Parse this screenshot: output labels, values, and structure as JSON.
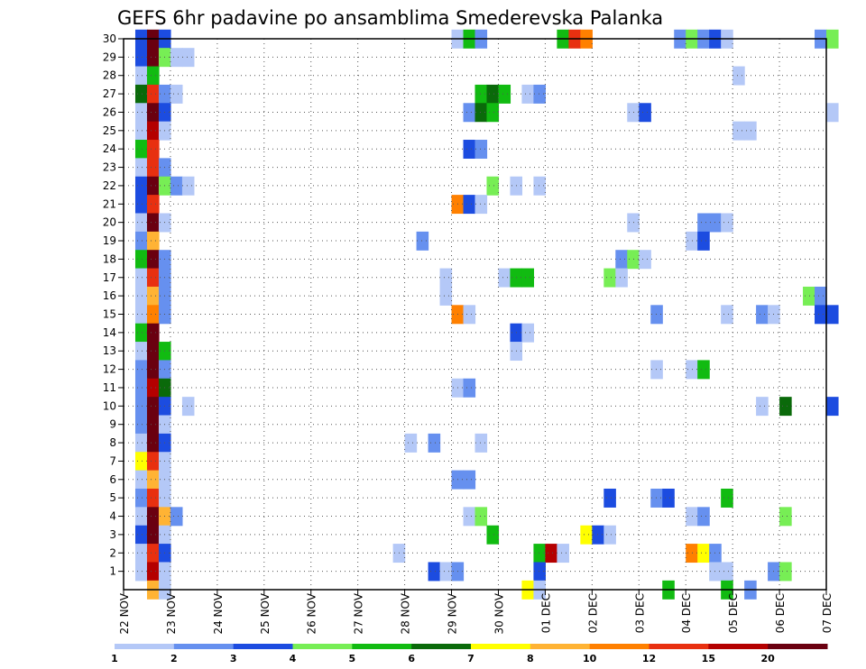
{
  "chart_data": {
    "type": "heatmap",
    "title": "GEFS 6hr padavine po ansamblima Smederevska Palanka",
    "xlabel": "",
    "ylabel": "",
    "x_ticks": [
      "22 NOV",
      "23 NOV",
      "24 NOV",
      "25 NOV",
      "26 NOV",
      "27 NOV",
      "28 NOV",
      "29 NOV",
      "30 NOV",
      "01 DEC",
      "02 DEC",
      "03 DEC",
      "04 DEC",
      "05 DEC",
      "06 DEC",
      "07 DEC"
    ],
    "y_ticks": [
      "1",
      "2",
      "3",
      "4",
      "5",
      "6",
      "7",
      "8",
      "9",
      "10",
      "11",
      "12",
      "13",
      "14",
      "15",
      "16",
      "17",
      "18",
      "19",
      "20",
      "21",
      "22",
      "23",
      "24",
      "25",
      "26",
      "27",
      "28",
      "29",
      "30"
    ],
    "x_range_days": [
      0,
      15
    ],
    "y_range": [
      0,
      30
    ],
    "grid": true,
    "colorbar": {
      "labels": [
        "1",
        "2",
        "3",
        "4",
        "5",
        "6",
        "7",
        "8",
        "10",
        "12",
        "15",
        "20"
      ],
      "colors": [
        "#b4c8f7",
        "#6690ef",
        "#1c4ce0",
        "#77ee55",
        "#11bb11",
        "#0a6a0a",
        "#ffff00",
        "#ffb334",
        "#ff8000",
        "#e83010",
        "#b40000",
        "#6a0010"
      ]
    },
    "cells": [
      [
        0.25,
        30,
        2
      ],
      [
        0.5,
        30,
        11
      ],
      [
        0.75,
        30,
        2
      ],
      [
        0.25,
        29,
        2
      ],
      [
        0.5,
        29,
        11
      ],
      [
        0.75,
        29,
        3
      ],
      [
        1.0,
        29,
        0
      ],
      [
        1.25,
        29,
        0
      ],
      [
        0.25,
        28,
        0
      ],
      [
        0.5,
        28,
        4
      ],
      [
        0.25,
        27,
        5
      ],
      [
        0.5,
        27,
        9
      ],
      [
        0.75,
        27,
        1
      ],
      [
        1.0,
        27,
        0
      ],
      [
        0.25,
        26,
        0
      ],
      [
        0.5,
        26,
        11
      ],
      [
        0.75,
        26,
        2
      ],
      [
        0.25,
        25,
        0
      ],
      [
        0.5,
        25,
        10
      ],
      [
        0.75,
        25,
        0
      ],
      [
        0.25,
        24,
        4
      ],
      [
        0.5,
        24,
        9
      ],
      [
        0.25,
        23,
        0
      ],
      [
        0.5,
        23,
        9
      ],
      [
        0.75,
        23,
        1
      ],
      [
        0.25,
        22,
        2
      ],
      [
        0.5,
        22,
        11
      ],
      [
        0.75,
        22,
        3
      ],
      [
        1.0,
        22,
        1
      ],
      [
        1.25,
        22,
        0
      ],
      [
        0.25,
        21,
        2
      ],
      [
        0.5,
        21,
        9
      ],
      [
        0.25,
        20,
        0
      ],
      [
        0.5,
        20,
        11
      ],
      [
        0.75,
        20,
        0
      ],
      [
        0.25,
        19,
        1
      ],
      [
        0.5,
        19,
        7
      ],
      [
        0.25,
        18,
        4
      ],
      [
        0.5,
        18,
        11
      ],
      [
        0.75,
        18,
        1
      ],
      [
        0.25,
        17,
        0
      ],
      [
        0.5,
        17,
        9
      ],
      [
        0.75,
        17,
        1
      ],
      [
        0.25,
        16,
        0
      ],
      [
        0.5,
        16,
        7
      ],
      [
        0.75,
        16,
        1
      ],
      [
        0.25,
        15,
        0
      ],
      [
        0.5,
        15,
        8
      ],
      [
        0.75,
        15,
        1
      ],
      [
        0.25,
        14,
        4
      ],
      [
        0.5,
        14,
        11
      ],
      [
        0.25,
        13,
        0
      ],
      [
        0.5,
        13,
        11
      ],
      [
        0.75,
        13,
        4
      ],
      [
        0.25,
        12,
        1
      ],
      [
        0.5,
        12,
        11
      ],
      [
        0.75,
        12,
        1
      ],
      [
        0.25,
        11,
        1
      ],
      [
        0.5,
        11,
        10
      ],
      [
        0.75,
        11,
        5
      ],
      [
        0.25,
        10,
        1
      ],
      [
        0.5,
        10,
        11
      ],
      [
        0.75,
        10,
        2
      ],
      [
        1.25,
        10,
        0
      ],
      [
        0.25,
        9,
        1
      ],
      [
        0.5,
        9,
        11
      ],
      [
        0.75,
        9,
        0
      ],
      [
        0.25,
        8,
        0
      ],
      [
        0.5,
        8,
        11
      ],
      [
        0.75,
        8,
        2
      ],
      [
        0.25,
        7,
        6
      ],
      [
        0.5,
        7,
        9
      ],
      [
        0.75,
        7,
        0
      ],
      [
        0.25,
        6,
        0
      ],
      [
        0.5,
        6,
        7
      ],
      [
        0.75,
        6,
        0
      ],
      [
        0.25,
        5,
        1
      ],
      [
        0.5,
        5,
        9
      ],
      [
        0.75,
        5,
        0
      ],
      [
        0.25,
        4,
        0
      ],
      [
        0.5,
        4,
        11
      ],
      [
        0.75,
        4,
        7
      ],
      [
        1.0,
        4,
        1
      ],
      [
        0.25,
        3,
        2
      ],
      [
        0.5,
        3,
        11
      ],
      [
        0.75,
        3,
        0
      ],
      [
        0.25,
        2,
        0
      ],
      [
        0.5,
        2,
        9
      ],
      [
        0.75,
        2,
        2
      ],
      [
        0.25,
        1,
        0
      ],
      [
        0.5,
        1,
        10
      ],
      [
        0.75,
        1,
        0
      ],
      [
        0.5,
        0,
        7
      ],
      [
        0.75,
        0,
        0
      ],
      [
        7.0,
        30,
        0
      ],
      [
        7.25,
        30,
        4
      ],
      [
        7.5,
        30,
        1
      ],
      [
        9.25,
        30,
        4
      ],
      [
        9.5,
        30,
        9
      ],
      [
        9.75,
        30,
        8
      ],
      [
        11.75,
        30,
        1
      ],
      [
        12.0,
        30,
        3
      ],
      [
        12.25,
        30,
        1
      ],
      [
        12.5,
        30,
        2
      ],
      [
        12.75,
        30,
        0
      ],
      [
        14.75,
        30,
        1
      ],
      [
        15.0,
        30,
        3
      ],
      [
        13.0,
        28,
        0
      ],
      [
        7.5,
        27,
        4
      ],
      [
        7.75,
        27,
        5
      ],
      [
        8.0,
        27,
        4
      ],
      [
        8.5,
        27,
        0
      ],
      [
        8.75,
        27,
        1
      ],
      [
        7.25,
        26,
        1
      ],
      [
        7.5,
        26,
        5
      ],
      [
        7.75,
        26,
        4
      ],
      [
        10.75,
        26,
        0
      ],
      [
        11.0,
        26,
        2
      ],
      [
        15.0,
        26,
        0
      ],
      [
        13.0,
        25,
        0
      ],
      [
        13.25,
        25,
        0
      ],
      [
        7.25,
        24,
        2
      ],
      [
        7.5,
        24,
        1
      ],
      [
        7.75,
        22,
        3
      ],
      [
        8.25,
        22,
        0
      ],
      [
        8.75,
        22,
        0
      ],
      [
        7.0,
        21,
        8
      ],
      [
        7.25,
        21,
        2
      ],
      [
        7.5,
        21,
        0
      ],
      [
        10.75,
        20,
        0
      ],
      [
        12.25,
        20,
        1
      ],
      [
        12.5,
        20,
        1
      ],
      [
        12.75,
        20,
        0
      ],
      [
        6.25,
        19,
        1
      ],
      [
        12.0,
        19,
        0
      ],
      [
        12.25,
        19,
        2
      ],
      [
        10.5,
        18,
        1
      ],
      [
        10.75,
        18,
        3
      ],
      [
        11.0,
        18,
        0
      ],
      [
        6.75,
        17,
        0
      ],
      [
        8.0,
        17,
        0
      ],
      [
        8.25,
        17,
        4
      ],
      [
        8.5,
        17,
        4
      ],
      [
        10.25,
        17,
        3
      ],
      [
        10.5,
        17,
        0
      ],
      [
        6.75,
        16,
        0
      ],
      [
        14.5,
        16,
        3
      ],
      [
        14.75,
        16,
        1
      ],
      [
        7.0,
        15,
        8
      ],
      [
        7.25,
        15,
        0
      ],
      [
        11.25,
        15,
        1
      ],
      [
        12.75,
        15,
        0
      ],
      [
        13.5,
        15,
        1
      ],
      [
        13.75,
        15,
        0
      ],
      [
        14.75,
        15,
        2
      ],
      [
        15.0,
        15,
        2
      ],
      [
        8.25,
        14,
        2
      ],
      [
        8.5,
        14,
        0
      ],
      [
        8.25,
        13,
        0
      ],
      [
        11.25,
        12,
        0
      ],
      [
        12.0,
        12,
        0
      ],
      [
        12.25,
        12,
        4
      ],
      [
        7.0,
        11,
        0
      ],
      [
        7.25,
        11,
        1
      ],
      [
        13.5,
        10,
        0
      ],
      [
        14.0,
        10,
        5
      ],
      [
        15.0,
        10,
        2
      ],
      [
        6.0,
        8,
        0
      ],
      [
        6.5,
        8,
        1
      ],
      [
        7.5,
        8,
        0
      ],
      [
        7.0,
        6,
        1
      ],
      [
        7.25,
        6,
        1
      ],
      [
        10.25,
        5,
        2
      ],
      [
        11.25,
        5,
        1
      ],
      [
        11.5,
        5,
        2
      ],
      [
        12.75,
        5,
        4
      ],
      [
        7.25,
        4,
        0
      ],
      [
        7.5,
        4,
        3
      ],
      [
        12.0,
        4,
        0
      ],
      [
        12.25,
        4,
        1
      ],
      [
        14.0,
        4,
        3
      ],
      [
        7.75,
        3,
        4
      ],
      [
        9.75,
        3,
        6
      ],
      [
        10.0,
        3,
        2
      ],
      [
        10.25,
        3,
        0
      ],
      [
        5.75,
        2,
        0
      ],
      [
        8.75,
        2,
        4
      ],
      [
        9.0,
        2,
        10
      ],
      [
        9.25,
        2,
        0
      ],
      [
        12.0,
        2,
        8
      ],
      [
        12.25,
        2,
        6
      ],
      [
        12.5,
        2,
        1
      ],
      [
        6.5,
        1,
        2
      ],
      [
        6.75,
        1,
        0
      ],
      [
        7.0,
        1,
        1
      ],
      [
        8.75,
        1,
        2
      ],
      [
        12.5,
        1,
        0
      ],
      [
        12.75,
        1,
        0
      ],
      [
        13.75,
        1,
        1
      ],
      [
        14.0,
        1,
        3
      ],
      [
        8.5,
        0,
        6
      ],
      [
        8.75,
        0,
        0
      ],
      [
        11.5,
        0,
        4
      ],
      [
        12.75,
        0,
        4
      ],
      [
        13.25,
        0,
        1
      ]
    ]
  }
}
